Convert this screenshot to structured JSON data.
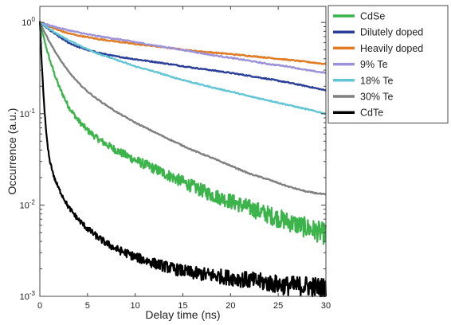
{
  "chart_data": {
    "type": "line",
    "title": "",
    "xlabel": "Delay time (ns)",
    "ylabel": "Occurrence (a.u.)",
    "xlim": [
      0,
      30
    ],
    "ylim": [
      0.001,
      1.5
    ],
    "yscale": "log",
    "x_ticks": [
      "0",
      "5",
      "10",
      "15",
      "20",
      "25",
      "30"
    ],
    "y_ticks": [
      {
        "base": "10",
        "exp": "0",
        "value": 1
      },
      {
        "base": "10",
        "exp": "-1",
        "value": 0.1
      },
      {
        "base": "10",
        "exp": "-2",
        "value": 0.01
      },
      {
        "base": "10",
        "exp": "-3",
        "value": 0.001
      }
    ],
    "grid": false,
    "legend_position": "outside-right-top",
    "series": [
      {
        "name": "CdSe",
        "color": "#3cb44b",
        "x": [
          0,
          0.5,
          1,
          1.5,
          2,
          2.5,
          3,
          4,
          5,
          6,
          7,
          8,
          10,
          12,
          14,
          16,
          18,
          20,
          22,
          24,
          26,
          28,
          30
        ],
        "y": [
          1,
          0.62,
          0.4,
          0.28,
          0.2,
          0.155,
          0.12,
          0.085,
          0.066,
          0.054,
          0.046,
          0.04,
          0.031,
          0.025,
          0.02,
          0.016,
          0.013,
          0.011,
          0.0093,
          0.0078,
          0.0066,
          0.0056,
          0.0048
        ],
        "noisy": true
      },
      {
        "name": "Dilutely doped",
        "color": "#2b3f99",
        "x": [
          0,
          1,
          2,
          3,
          4,
          5,
          6,
          7,
          8,
          10,
          12,
          14,
          16,
          18,
          20,
          22,
          24,
          26,
          28,
          30
        ],
        "y": [
          1,
          0.83,
          0.7,
          0.6,
          0.54,
          0.5,
          0.47,
          0.445,
          0.425,
          0.395,
          0.37,
          0.345,
          0.32,
          0.3,
          0.28,
          0.26,
          0.24,
          0.22,
          0.2,
          0.18
        ],
        "noisy": false
      },
      {
        "name": "Heavily doped",
        "color": "#e07b24",
        "x": [
          0,
          1,
          2,
          3,
          4,
          5,
          6,
          8,
          10,
          12,
          14,
          16,
          18,
          20,
          22,
          24,
          26,
          28,
          30
        ],
        "y": [
          1,
          0.9,
          0.82,
          0.76,
          0.72,
          0.69,
          0.66,
          0.62,
          0.58,
          0.55,
          0.52,
          0.49,
          0.47,
          0.45,
          0.43,
          0.41,
          0.39,
          0.37,
          0.35
        ],
        "noisy": false
      },
      {
        "name": "9% Te",
        "color": "#9b92d9",
        "x": [
          0,
          1,
          2,
          3,
          4,
          5,
          6,
          8,
          10,
          12,
          14,
          16,
          18,
          20,
          22,
          24,
          26,
          28,
          30
        ],
        "y": [
          1,
          0.93,
          0.87,
          0.82,
          0.78,
          0.74,
          0.71,
          0.66,
          0.61,
          0.56,
          0.52,
          0.48,
          0.44,
          0.41,
          0.38,
          0.35,
          0.33,
          0.3,
          0.28
        ],
        "noisy": false
      },
      {
        "name": "18% Te",
        "color": "#62c6d4",
        "x": [
          0,
          1,
          2,
          3,
          4,
          5,
          6,
          8,
          10,
          12,
          14,
          16,
          18,
          20,
          22,
          24,
          26,
          28,
          30
        ],
        "y": [
          1,
          0.85,
          0.73,
          0.64,
          0.57,
          0.51,
          0.46,
          0.39,
          0.33,
          0.29,
          0.25,
          0.22,
          0.195,
          0.175,
          0.155,
          0.14,
          0.125,
          0.112,
          0.1
        ],
        "noisy": false
      },
      {
        "name": "30% Te",
        "color": "#808080",
        "x": [
          0,
          0.5,
          1,
          1.5,
          2,
          3,
          4,
          5,
          6,
          8,
          10,
          12,
          14,
          16,
          18,
          20,
          22,
          24,
          26,
          28,
          30
        ],
        "y": [
          1,
          0.78,
          0.62,
          0.5,
          0.41,
          0.29,
          0.22,
          0.175,
          0.145,
          0.105,
          0.08,
          0.063,
          0.05,
          0.04,
          0.033,
          0.027,
          0.022,
          0.019,
          0.016,
          0.014,
          0.013
        ],
        "noisy": false
      },
      {
        "name": "CdTe",
        "color": "#000000",
        "x": [
          0,
          0.2,
          0.4,
          0.6,
          0.8,
          1,
          1.5,
          2,
          3,
          4,
          5,
          6,
          7,
          8,
          10,
          12,
          14,
          16,
          18,
          20,
          22,
          24,
          26,
          28,
          30
        ],
        "y": [
          1,
          0.35,
          0.15,
          0.075,
          0.045,
          0.032,
          0.02,
          0.015,
          0.0095,
          0.007,
          0.0055,
          0.0045,
          0.0038,
          0.0033,
          0.0027,
          0.0023,
          0.002,
          0.0018,
          0.0017,
          0.0016,
          0.0015,
          0.0014,
          0.0013,
          0.0013,
          0.0012
        ],
        "noisy": true
      }
    ]
  }
}
